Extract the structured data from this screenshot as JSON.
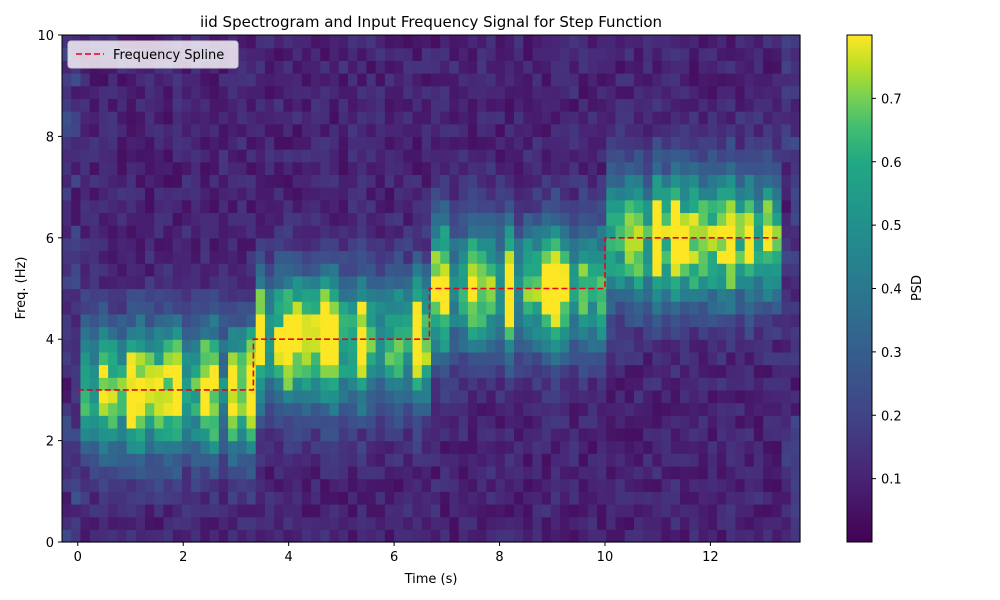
{
  "chart_data": {
    "type": "heatmap",
    "title": "iid Spectrogram and Input Frequency Signal for Step Function",
    "xlabel": "Time (s)",
    "ylabel": "Freq. (Hz)",
    "xlim": [
      -0.3,
      13.7
    ],
    "ylim": [
      0,
      10
    ],
    "x_ticks": [
      0,
      2,
      4,
      6,
      8,
      10,
      12
    ],
    "y_ticks": [
      0,
      2,
      4,
      6,
      8,
      10
    ],
    "grid": false,
    "colormap": "viridis",
    "colorbar": {
      "label": "PSD",
      "range": [
        0.0,
        0.8
      ],
      "ticks": [
        0.1,
        0.2,
        0.3,
        0.4,
        0.5,
        0.6,
        0.7
      ]
    },
    "heatmap": {
      "time_start": 0.0,
      "time_end": 13.33,
      "freq_start": 0.0,
      "freq_end": 10.0,
      "n_time_bins": 80,
      "n_freq_bins": 40,
      "segments": [
        {
          "t_start": 0.0,
          "t_end": 3.33,
          "center_freq": 3
        },
        {
          "t_start": 3.33,
          "t_end": 6.67,
          "center_freq": 4
        },
        {
          "t_start": 6.67,
          "t_end": 10.0,
          "center_freq": 5
        },
        {
          "t_start": 10.0,
          "t_end": 13.33,
          "center_freq": 6
        }
      ],
      "peak_psd": 0.8
    },
    "series": [
      {
        "name": "Frequency Spline",
        "style": "dashed",
        "color": "#e8001c",
        "x": [
          0,
          3.33,
          3.33,
          6.67,
          6.67,
          10.0,
          10.0,
          13.33
        ],
        "y": [
          3,
          3,
          4,
          4,
          5,
          5,
          6,
          6
        ]
      }
    ],
    "legend_position": "top-left"
  }
}
